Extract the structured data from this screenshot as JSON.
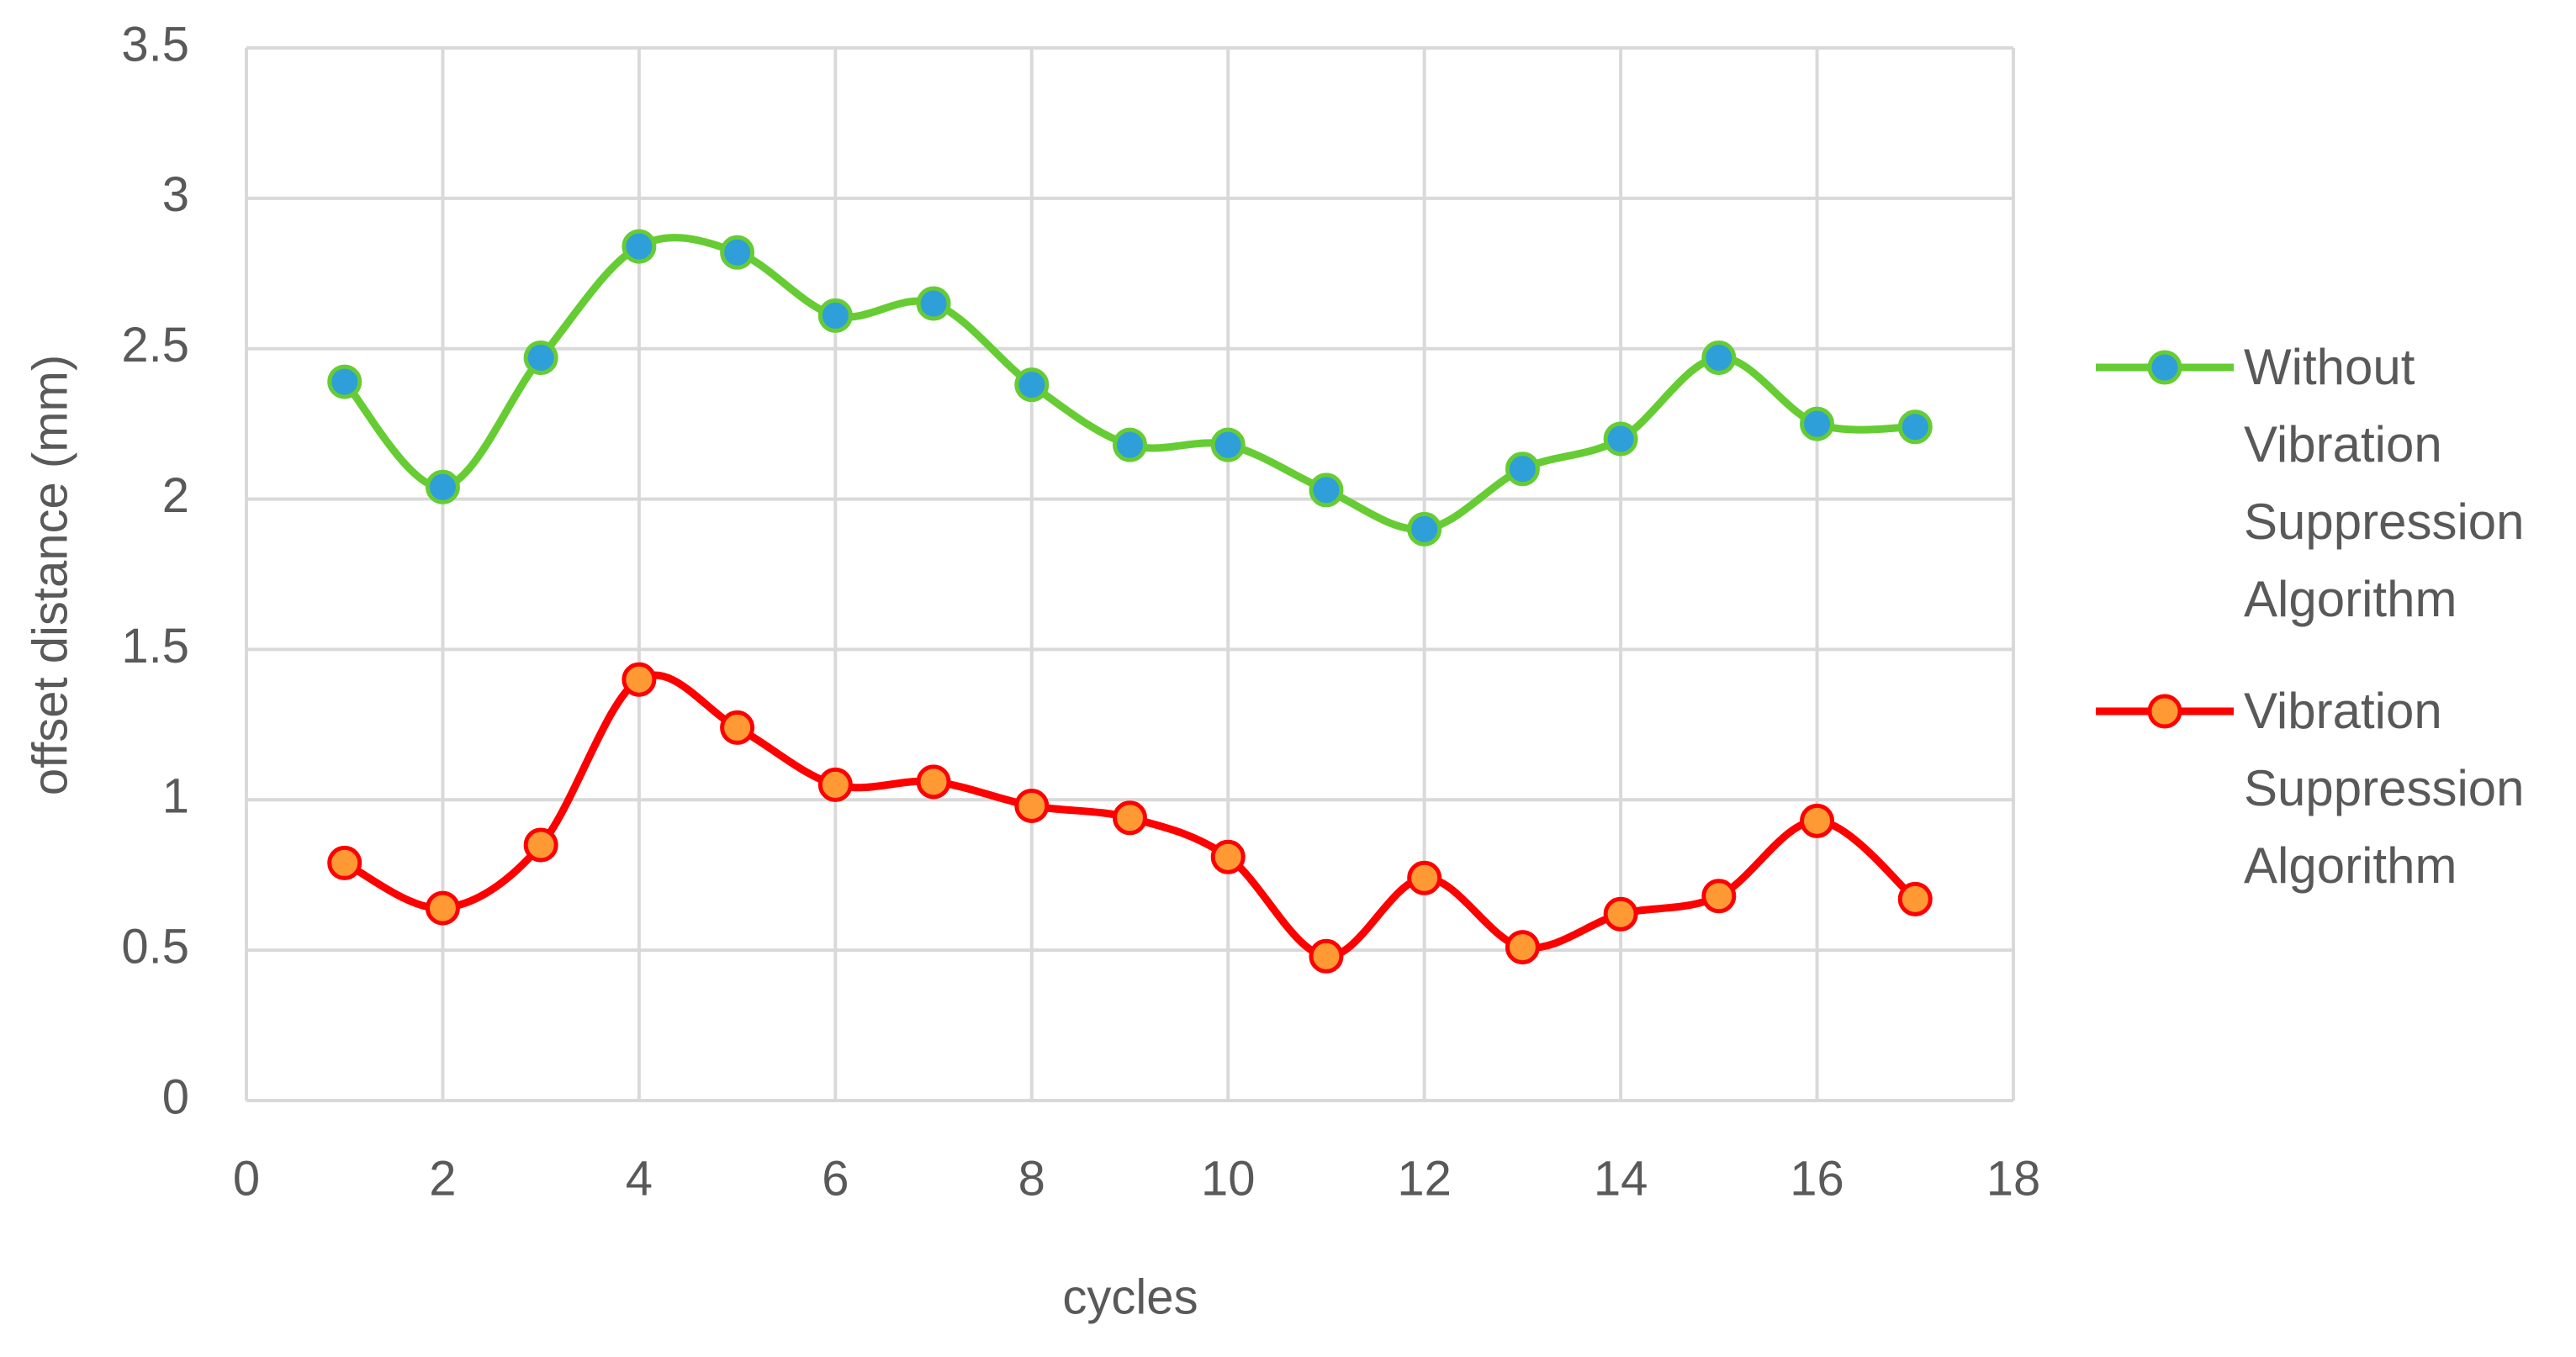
{
  "chart_data": {
    "type": "line",
    "smooth": true,
    "x_label": "cycles",
    "y_label": "offset distance (mm)",
    "x": [
      1,
      2,
      3,
      4,
      5,
      6,
      7,
      8,
      9,
      10,
      11,
      12,
      13,
      14,
      15,
      16,
      17
    ],
    "series": [
      {
        "name": "Without Vibration Suppression Algorithm",
        "color": "#66cc33",
        "marker_color": "#2e9fd8",
        "values": [
          2.39,
          2.04,
          2.47,
          2.84,
          2.82,
          2.61,
          2.65,
          2.38,
          2.18,
          2.18,
          2.03,
          1.9,
          2.1,
          2.2,
          2.47,
          2.25,
          2.24
        ]
      },
      {
        "name": "Vibration Suppression Algorithm",
        "color": "#ff0000",
        "marker_color": "#ff9933",
        "values": [
          0.79,
          0.64,
          0.85,
          1.4,
          1.24,
          1.05,
          1.06,
          0.98,
          0.94,
          0.81,
          0.48,
          0.74,
          0.51,
          0.62,
          0.68,
          0.93,
          0.67
        ]
      }
    ],
    "xlim": [
      0,
      18
    ],
    "xticks": [
      0,
      2,
      4,
      6,
      8,
      10,
      12,
      14,
      16,
      18
    ],
    "ylim": [
      0,
      3.5
    ],
    "yticks": [
      0,
      0.5,
      1,
      1.5,
      2,
      2.5,
      3,
      3.5
    ],
    "grid": true,
    "legend": "right"
  }
}
